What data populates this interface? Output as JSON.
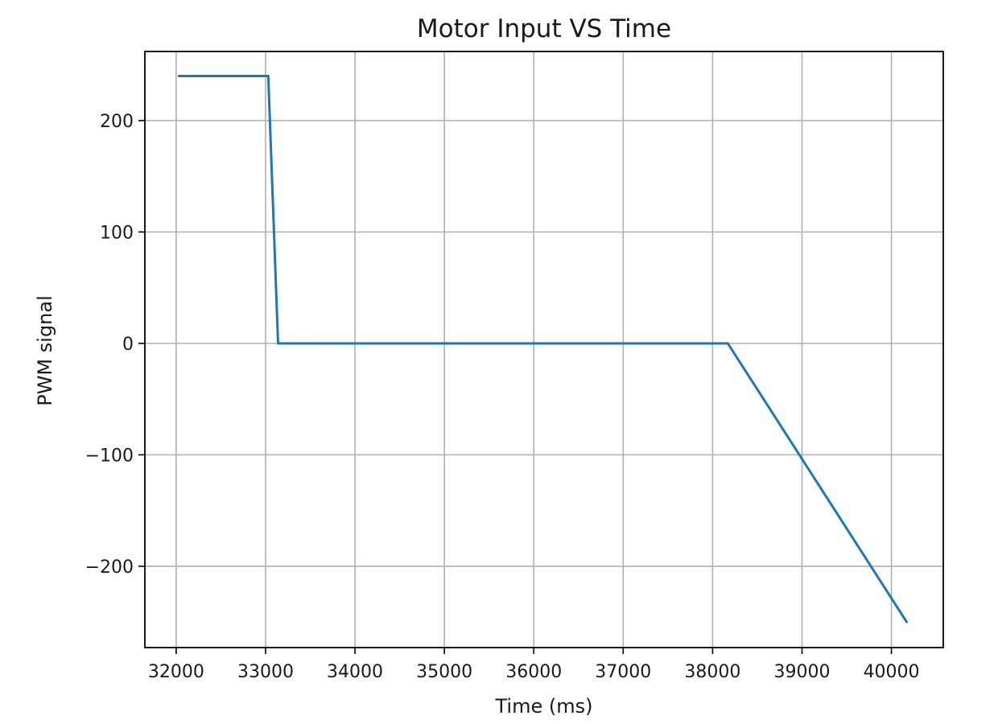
{
  "chart_data": {
    "type": "line",
    "title": "Motor Input VS Time",
    "xlabel": "Time (ms)",
    "ylabel": "PWM signal",
    "xlim": [
      31650,
      40580
    ],
    "ylim": [
      -273,
      262
    ],
    "xticks": [
      32000,
      33000,
      34000,
      35000,
      36000,
      37000,
      38000,
      39000,
      40000
    ],
    "yticks": [
      -200,
      -100,
      0,
      100,
      200
    ],
    "ytick_labels": [
      "−200",
      "−100",
      "0",
      "100",
      "200"
    ],
    "grid": true,
    "series": [
      {
        "color": "#1f77b4",
        "x": [
          32030,
          33030,
          33140,
          38170,
          40170
        ],
        "y": [
          240,
          240,
          0,
          0,
          -250
        ]
      }
    ]
  }
}
